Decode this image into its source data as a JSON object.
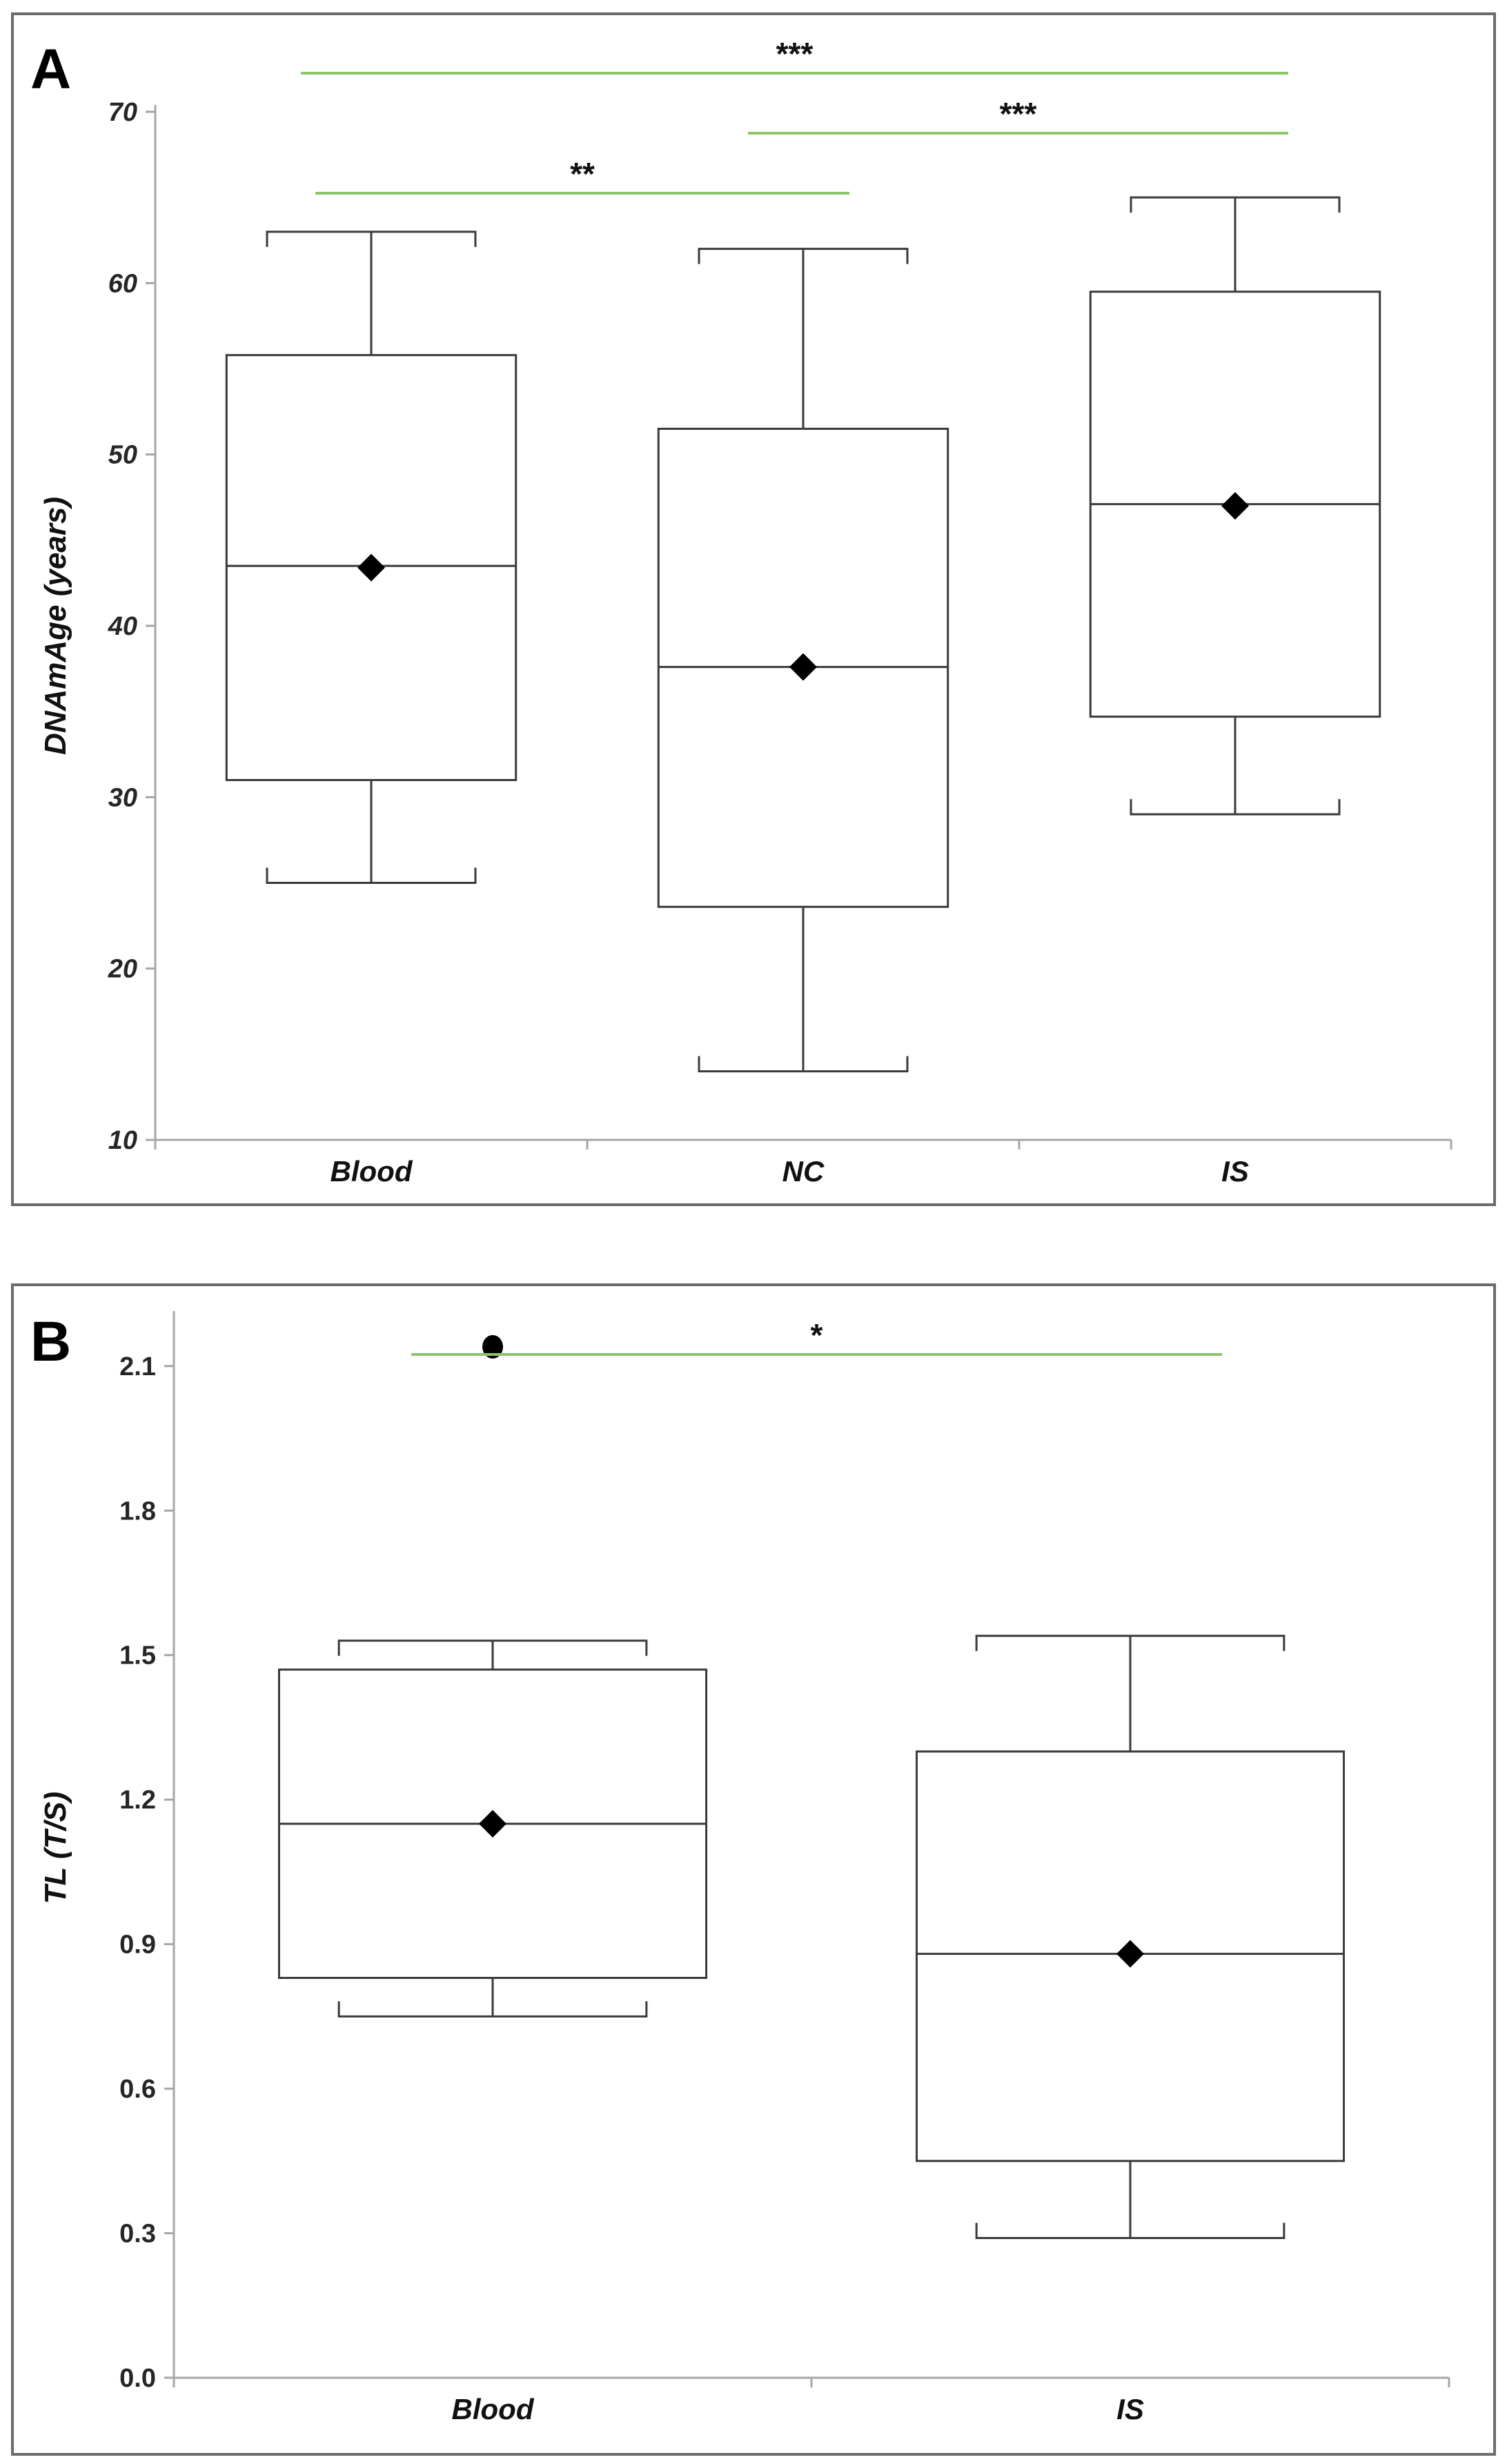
{
  "chart_data": [
    {
      "type": "box",
      "panel_label": "A",
      "ylabel": "DNAmAge (years)",
      "ylim": [
        10,
        70
      ],
      "yticks": [
        10,
        20,
        30,
        40,
        50,
        60,
        70
      ],
      "grid": false,
      "categories": [
        "Blood",
        "NC",
        "IS"
      ],
      "boxes": [
        {
          "category": "Blood",
          "min": 25,
          "q1": 31,
          "median": 43.5,
          "mean": 43.4,
          "q3": 55.8,
          "max": 63,
          "outliers": []
        },
        {
          "category": "NC",
          "min": 14,
          "q1": 23.6,
          "median": 37.6,
          "mean": 37.6,
          "q3": 51.5,
          "max": 62,
          "outliers": []
        },
        {
          "category": "IS",
          "min": 29,
          "q1": 34.7,
          "median": 47.1,
          "mean": 47.0,
          "q3": 59.5,
          "max": 65,
          "outliers": []
        }
      ],
      "significance": [
        {
          "from": "Blood",
          "to": "IS",
          "label": "***"
        },
        {
          "from": "NC",
          "to": "IS",
          "label": "***"
        },
        {
          "from": "Blood",
          "to": "NC",
          "label": "**"
        }
      ],
      "colors": {
        "significance_line": "#8cc46b",
        "box_stroke": "#3a3a3a"
      }
    },
    {
      "type": "box",
      "panel_label": "B",
      "ylabel": "TL (T/S)",
      "ylim": [
        0.0,
        2.2
      ],
      "yticks": [
        "0.0",
        "0.3",
        "0.6",
        "0.9",
        "1.2",
        "1.5",
        "1.8",
        "2.1"
      ],
      "grid": false,
      "categories": [
        "Blood",
        "IS"
      ],
      "boxes": [
        {
          "category": "Blood",
          "min": 0.75,
          "q1": 0.83,
          "median": 1.15,
          "mean": 1.15,
          "q3": 1.47,
          "max": 1.53,
          "outliers": [
            2.14
          ]
        },
        {
          "category": "IS",
          "min": 0.29,
          "q1": 0.45,
          "median": 0.88,
          "mean": 0.88,
          "q3": 1.3,
          "max": 1.54,
          "outliers": []
        }
      ],
      "significance": [
        {
          "from": "Blood",
          "to": "IS",
          "label": "*"
        }
      ],
      "colors": {
        "significance_line": "#8cc46b",
        "box_stroke": "#3a3a3a"
      }
    }
  ]
}
